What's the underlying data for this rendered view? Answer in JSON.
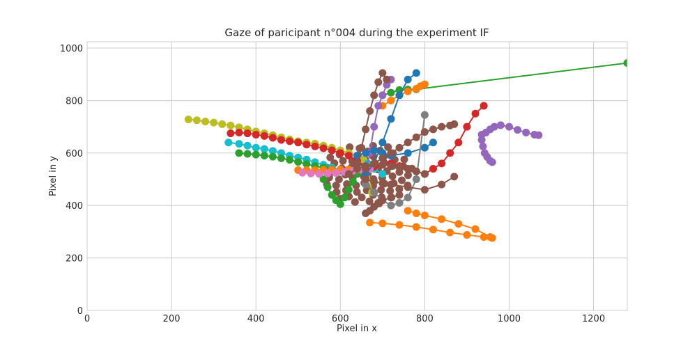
{
  "chart_data": {
    "type": "scatter",
    "title": "Gaze of paricipant n°004 during the experiment IF",
    "xlabel": "Pixel in x",
    "ylabel": "Pixel in y",
    "xlim": [
      0,
      1280
    ],
    "ylim": [
      0,
      1024
    ],
    "xticks": [
      0,
      200,
      400,
      600,
      800,
      1000,
      1200
    ],
    "yticks": [
      0,
      200,
      400,
      600,
      800,
      1000
    ],
    "grid": true,
    "legend": "none",
    "series": [
      {
        "color": "#bcbd22",
        "x": [
          240,
          260,
          280,
          300,
          320,
          340,
          360,
          380,
          400,
          420,
          440,
          460,
          480,
          500,
          520,
          540,
          560,
          580,
          600,
          620,
          640,
          655,
          665,
          675
        ],
        "y": [
          728,
          725,
          720,
          716,
          710,
          705,
          698,
          690,
          682,
          675,
          668,
          660,
          652,
          645,
          640,
          636,
          628,
          620,
          610,
          600,
          590,
          575,
          540,
          450
        ]
      },
      {
        "color": "#17becf",
        "x": [
          335,
          360,
          380,
          400,
          420,
          440,
          460,
          480,
          500,
          520,
          540,
          560,
          580,
          600,
          620,
          640,
          655,
          665,
          680,
          700
        ],
        "y": [
          640,
          635,
          628,
          620,
          615,
          608,
          600,
          590,
          583,
          575,
          565,
          555,
          545,
          535,
          528,
          532,
          540,
          560,
          540,
          520
        ]
      },
      {
        "color": "#2ca02c",
        "x": [
          360,
          380,
          400,
          420,
          440,
          460,
          480,
          500,
          520,
          540,
          560,
          580,
          600,
          620,
          640
        ],
        "y": [
          600,
          597,
          594,
          590,
          586,
          580,
          574,
          566,
          558,
          550,
          544,
          538,
          533,
          530,
          528
        ]
      },
      {
        "color": "#2ca02c",
        "x": [
          560,
          570,
          580,
          590,
          600,
          610,
          620,
          630,
          640,
          650,
          660
        ],
        "y": [
          500,
          470,
          440,
          420,
          405,
          430,
          460,
          490,
          520,
          540,
          550
        ]
      },
      {
        "color": "#2ca02c",
        "x": [
          700,
          720,
          740,
          760,
          780,
          1280
        ],
        "y": [
          820,
          830,
          840,
          842,
          843,
          943
        ]
      },
      {
        "color": "#d62728",
        "x": [
          340,
          360,
          380,
          400,
          420,
          440,
          460,
          480,
          500,
          520,
          540,
          560,
          580,
          600,
          620,
          640,
          660
        ],
        "y": [
          675,
          678,
          675,
          670,
          665,
          658,
          650,
          645,
          640,
          632,
          625,
          618,
          610,
          600,
          590,
          570,
          540
        ]
      },
      {
        "color": "#d62728",
        "x": [
          660,
          680,
          700,
          720,
          740,
          760,
          780,
          800,
          820,
          840,
          860,
          880,
          900,
          920,
          940
        ],
        "y": [
          540,
          548,
          555,
          560,
          550,
          540,
          530,
          520,
          540,
          560,
          600,
          640,
          700,
          750,
          780
        ]
      },
      {
        "color": "#ff7f0e",
        "x": [
          500,
          520,
          540,
          560,
          580,
          600,
          620,
          640,
          660,
          670
        ],
        "y": [
          535,
          535,
          535,
          536,
          536,
          537,
          537,
          538,
          540,
          545
        ]
      },
      {
        "color": "#ff7f0e",
        "x": [
          670,
          700,
          740,
          780,
          820,
          860,
          900,
          940,
          960
        ],
        "y": [
          335,
          332,
          326,
          318,
          308,
          297,
          288,
          280,
          276
        ]
      },
      {
        "color": "#ff7f0e",
        "x": [
          760,
          780,
          800,
          840,
          880,
          920,
          955
        ],
        "y": [
          380,
          370,
          362,
          348,
          330,
          310,
          280
        ]
      },
      {
        "color": "#ff7f0e",
        "x": [
          700,
          720,
          740,
          760,
          780,
          790,
          800
        ],
        "y": [
          780,
          800,
          820,
          835,
          845,
          855,
          862
        ]
      },
      {
        "color": "#e377c2",
        "x": [
          510,
          530,
          550,
          570,
          590,
          610,
          630,
          650,
          670
        ],
        "y": [
          525,
          522,
          520,
          522,
          524,
          528,
          532,
          536,
          540
        ]
      },
      {
        "color": "#9467bd",
        "x": [
          935,
          945,
          955,
          965,
          980,
          1000,
          1020,
          1040,
          1060,
          1070
        ],
        "y": [
          670,
          678,
          690,
          700,
          706,
          700,
          688,
          678,
          670,
          668
        ]
      },
      {
        "color": "#9467bd",
        "x": [
          935,
          938,
          942,
          948,
          955,
          960
        ],
        "y": [
          650,
          625,
          600,
          585,
          570,
          565
        ]
      },
      {
        "color": "#9467bd",
        "x": [
          660,
          670,
          680,
          690,
          700,
          710,
          720
        ],
        "y": [
          520,
          600,
          700,
          780,
          820,
          860,
          880
        ]
      },
      {
        "color": "#1f77b4",
        "x": [
          660,
          680,
          700,
          720,
          740,
          760,
          780
        ],
        "y": [
          520,
          560,
          640,
          730,
          820,
          880,
          905
        ]
      },
      {
        "color": "#1f77b4",
        "x": [
          640,
          660,
          680,
          700,
          720,
          760,
          800,
          820
        ],
        "y": [
          590,
          600,
          610,
          600,
          590,
          600,
          620,
          640
        ]
      },
      {
        "color": "#7f7f7f",
        "x": [
          660,
          680,
          700,
          720,
          740,
          760,
          780,
          800
        ],
        "y": [
          480,
          450,
          420,
          400,
          410,
          430,
          500,
          745
        ]
      },
      {
        "color": "#8c564b",
        "x": [
          640,
          650,
          660,
          670,
          680,
          690,
          700,
          710
        ],
        "y": [
          560,
          620,
          690,
          760,
          820,
          870,
          905,
          880
        ]
      },
      {
        "color": "#8c564b",
        "x": [
          660,
          680,
          700,
          720,
          740,
          760,
          780,
          800,
          820,
          840,
          860,
          870
        ],
        "y": [
          540,
          560,
          580,
          600,
          620,
          640,
          660,
          680,
          690,
          700,
          705,
          710
        ]
      },
      {
        "color": "#8c564b",
        "x": [
          660,
          680,
          700,
          720,
          760,
          800,
          840,
          870
        ],
        "y": [
          500,
          490,
          485,
          480,
          470,
          460,
          480,
          510
        ]
      },
      {
        "color": "#8c564b",
        "x": [
          660,
          670,
          680,
          690,
          700,
          720,
          740
        ],
        "y": [
          370,
          380,
          395,
          410,
          420,
          430,
          440
        ]
      },
      {
        "color": "#8c564b",
        "x": [
          620,
          640,
          660,
          680,
          700,
          720,
          740,
          760,
          780,
          800
        ],
        "y": [
          520,
          540,
          550,
          560,
          555,
          550,
          545,
          540,
          530,
          520
        ]
      }
    ],
    "cluster": {
      "color": "#8c564b",
      "x": 665,
      "y": 520
    }
  }
}
